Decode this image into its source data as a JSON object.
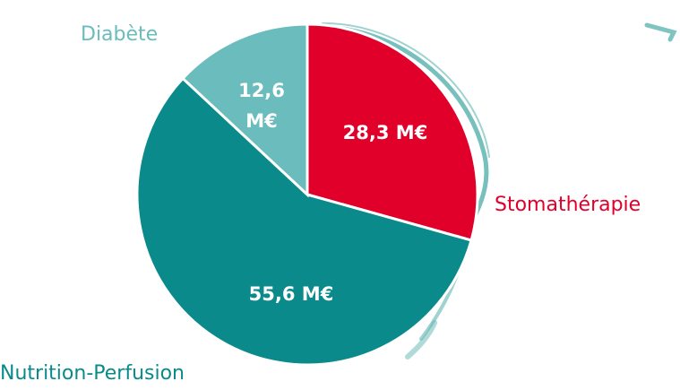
{
  "chart_data": {
    "type": "pie",
    "categories": [
      "Stomathérapie",
      "Nutrition-Perfusion",
      "Diabète"
    ],
    "values": [
      28.3,
      55.6,
      12.6
    ],
    "value_labels": [
      "28,3 M€",
      "55,6 M€",
      "12,6 M€"
    ],
    "colors": [
      "#e0002a",
      "#0a8a8a",
      "#6bbcbc"
    ]
  }
}
